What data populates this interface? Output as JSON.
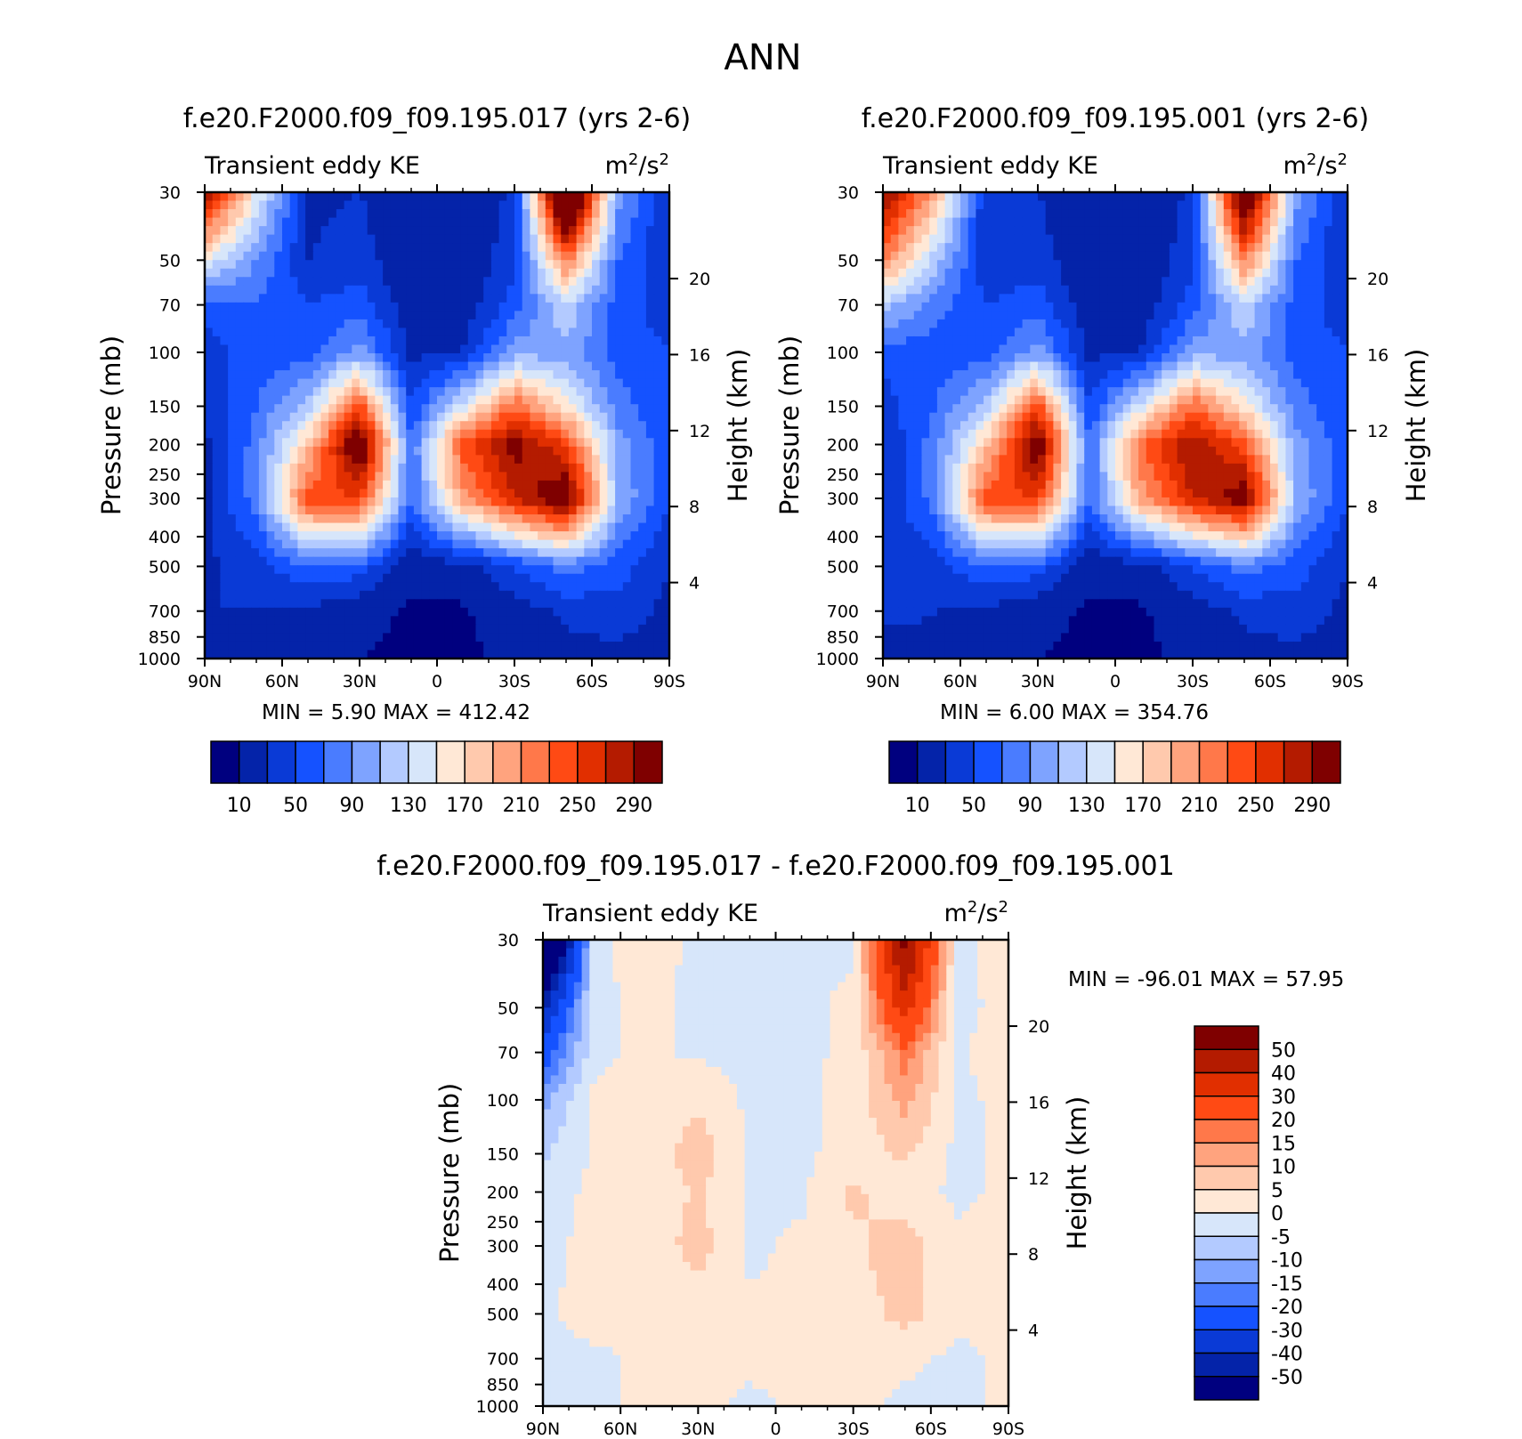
{
  "figure": {
    "title": "ANN",
    "var_label": "Transient eddy KE",
    "units_base": "m",
    "units_exp1": "2",
    "units_mid": "/s",
    "units_exp2": "2",
    "left_axis_title": "Pressure (mb)",
    "right_axis_title": "Height (km)",
    "min_label": "MIN =",
    "max_label": "MAX ="
  },
  "colors": {
    "abs_palette": [
      "#00007f",
      "#0423a9",
      "#0a3ad6",
      "#1552ff",
      "#4a7cff",
      "#7ea3ff",
      "#b3caff",
      "#d7e6fa",
      "#ffe8d6",
      "#ffc9ad",
      "#ffa37e",
      "#ff784a",
      "#ff4a14",
      "#e12f00",
      "#b41b00",
      "#7f0000"
    ],
    "diff_palette": [
      "#00007f",
      "#0423a9",
      "#0a3ad6",
      "#1552ff",
      "#4a7cff",
      "#7ea3ff",
      "#b3caff",
      "#d7e6fa",
      "#ffe8d6",
      "#ffc9ad",
      "#ffa37e",
      "#ff784a",
      "#ff4a14",
      "#e12f00",
      "#b41b00",
      "#7f0000"
    ]
  },
  "chart_data": [
    {
      "type": "heatmap",
      "title": "f.e20.F2000.f09_f09.195.017 (yrs 2-6)",
      "subtitle": "Transient eddy KE",
      "xlabel": "",
      "ylabel": "Pressure (mb)",
      "y2label": "Height (km)",
      "x_ticks": [
        "90N",
        "60N",
        "30N",
        "0",
        "30S",
        "60S",
        "90S"
      ],
      "y_ticks": [
        30,
        50,
        70,
        100,
        150,
        200,
        250,
        300,
        400,
        500,
        700,
        850,
        1000
      ],
      "y2_ticks": [
        4,
        8,
        12,
        16,
        20
      ],
      "min": "5.90",
      "max": "412.42",
      "colorbar_labels": [
        "10",
        "50",
        "90",
        "130",
        "170",
        "210",
        "250",
        "290"
      ],
      "levels": [
        10,
        30,
        50,
        70,
        90,
        110,
        130,
        150,
        170,
        190,
        210,
        230,
        250,
        270,
        290
      ],
      "lat": [
        90,
        70,
        50,
        30,
        10,
        -10,
        -30,
        -50,
        -70,
        -90
      ],
      "p": [
        30,
        50,
        70,
        100,
        150,
        200,
        300,
        500,
        700,
        1000
      ],
      "grid": [
        [
          300,
          150,
          25,
          30,
          10,
          10,
          35,
          400,
          100,
          30
        ],
        [
          150,
          90,
          30,
          40,
          10,
          10,
          45,
          220,
          70,
          30
        ],
        [
          60,
          70,
          50,
          60,
          15,
          15,
          60,
          130,
          60,
          40
        ],
        [
          40,
          60,
          60,
          100,
          25,
          30,
          100,
          100,
          60,
          50
        ],
        [
          30,
          70,
          120,
          240,
          50,
          140,
          230,
          160,
          80,
          50
        ],
        [
          25,
          80,
          180,
          330,
          70,
          240,
          300,
          250,
          100,
          55
        ],
        [
          25,
          80,
          240,
          250,
          70,
          200,
          270,
          320,
          110,
          50
        ],
        [
          25,
          40,
          70,
          60,
          15,
          20,
          50,
          80,
          60,
          30
        ],
        [
          30,
          30,
          25,
          15,
          8,
          8,
          20,
          35,
          40,
          25
        ],
        [
          20,
          25,
          20,
          10,
          6,
          6,
          15,
          20,
          25,
          15
        ]
      ]
    },
    {
      "type": "heatmap",
      "title": "f.e20.F2000.f09_f09.195.001 (yrs 2-6)",
      "subtitle": "Transient eddy KE",
      "xlabel": "",
      "ylabel": "Pressure (mb)",
      "y2label": "Height (km)",
      "x_ticks": [
        "90N",
        "60N",
        "30N",
        "0",
        "30S",
        "60S",
        "90S"
      ],
      "y_ticks": [
        30,
        50,
        70,
        100,
        150,
        200,
        250,
        300,
        400,
        500,
        700,
        850,
        1000
      ],
      "y2_ticks": [
        4,
        8,
        12,
        16,
        20
      ],
      "min": "6.00",
      "max": "354.76",
      "colorbar_labels": [
        "10",
        "50",
        "90",
        "130",
        "170",
        "210",
        "250",
        "290"
      ],
      "levels": [
        10,
        30,
        50,
        70,
        90,
        110,
        130,
        150,
        170,
        190,
        210,
        230,
        250,
        270,
        290
      ],
      "lat": [
        90,
        70,
        50,
        30,
        10,
        -10,
        -30,
        -50,
        -70,
        -90
      ],
      "p": [
        30,
        50,
        70,
        100,
        150,
        200,
        300,
        500,
        700,
        1000
      ],
      "grid": [
        [
          300,
          200,
          30,
          30,
          10,
          10,
          35,
          350,
          100,
          30
        ],
        [
          220,
          120,
          35,
          40,
          10,
          10,
          45,
          220,
          70,
          30
        ],
        [
          120,
          80,
          50,
          60,
          15,
          15,
          60,
          130,
          60,
          40
        ],
        [
          60,
          60,
          60,
          100,
          25,
          30,
          100,
          100,
          60,
          50
        ],
        [
          40,
          70,
          120,
          240,
          50,
          140,
          230,
          160,
          80,
          50
        ],
        [
          30,
          80,
          180,
          320,
          70,
          230,
          290,
          240,
          100,
          55
        ],
        [
          30,
          80,
          240,
          250,
          70,
          200,
          270,
          310,
          110,
          50
        ],
        [
          30,
          40,
          70,
          60,
          15,
          20,
          50,
          80,
          60,
          30
        ],
        [
          35,
          30,
          25,
          15,
          8,
          8,
          20,
          35,
          40,
          25
        ],
        [
          20,
          25,
          20,
          10,
          6,
          6,
          15,
          20,
          25,
          15
        ]
      ]
    },
    {
      "type": "heatmap",
      "title": "f.e20.F2000.f09_f09.195.017 - f.e20.F2000.f09_f09.195.001",
      "subtitle": "Transient eddy KE",
      "xlabel": "",
      "ylabel": "Pressure (mb)",
      "y2label": "Height (km)",
      "x_ticks": [
        "90N",
        "60N",
        "30N",
        "0",
        "30S",
        "60S",
        "90S"
      ],
      "y_ticks": [
        30,
        50,
        70,
        100,
        150,
        200,
        250,
        300,
        400,
        500,
        700,
        850,
        1000
      ],
      "y2_ticks": [
        4,
        8,
        12,
        16,
        20
      ],
      "min": "-96.01",
      "max": "57.95",
      "colorbar_labels": [
        "50",
        "40",
        "30",
        "20",
        "15",
        "10",
        "5",
        "0",
        "-5",
        "-10",
        "-15",
        "-20",
        "-30",
        "-40",
        "-50"
      ],
      "levels": [
        -50,
        -40,
        -30,
        -20,
        -15,
        -10,
        -5,
        0,
        5,
        10,
        15,
        20,
        30,
        40,
        50
      ],
      "lat": [
        90,
        70,
        50,
        30,
        10,
        -10,
        -30,
        -50,
        -70,
        -90
      ],
      "p": [
        30,
        50,
        70,
        100,
        150,
        200,
        300,
        500,
        700,
        1000
      ],
      "grid": [
        [
          -90,
          -1,
          2,
          -1,
          -1,
          -1,
          -1,
          55,
          -1,
          2
        ],
        [
          -40,
          -1,
          1,
          -1,
          -1,
          -1,
          1,
          35,
          -1,
          1
        ],
        [
          -25,
          -1,
          1,
          -1,
          -1,
          -1,
          1,
          18,
          -1,
          3
        ],
        [
          -12,
          1,
          1,
          4,
          -1,
          -1,
          2,
          12,
          -1,
          1
        ],
        [
          -6,
          1,
          2,
          8,
          -1,
          -1,
          2,
          6,
          -1,
          1
        ],
        [
          -2,
          1,
          1,
          6,
          -1,
          -1,
          6,
          2,
          -1,
          1
        ],
        [
          -1,
          1,
          2,
          7,
          -1,
          1,
          4,
          8,
          1,
          1
        ],
        [
          -1,
          2,
          1,
          2,
          1,
          1,
          2,
          7,
          1,
          1
        ],
        [
          -1,
          -1,
          1,
          1,
          1,
          1,
          1,
          1,
          -1,
          1
        ],
        [
          -1,
          -1,
          1,
          1,
          -1,
          1,
          1,
          -1,
          -1,
          1
        ]
      ]
    }
  ]
}
